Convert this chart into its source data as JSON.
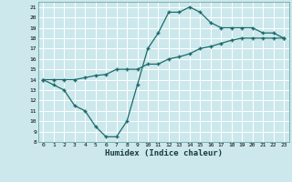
{
  "xlabel": "Humidex (Indice chaleur)",
  "bg_color": "#cce8ec",
  "grid_color": "#ffffff",
  "line_color": "#1a6b6b",
  "xlim": [
    -0.5,
    23.5
  ],
  "ylim": [
    8,
    21.5
  ],
  "xticks": [
    0,
    1,
    2,
    3,
    4,
    5,
    6,
    7,
    8,
    9,
    10,
    11,
    12,
    13,
    14,
    15,
    16,
    17,
    18,
    19,
    20,
    21,
    22,
    23
  ],
  "yticks": [
    8,
    9,
    10,
    11,
    12,
    13,
    14,
    15,
    16,
    17,
    18,
    19,
    20,
    21
  ],
  "line1_x": [
    0,
    1,
    2,
    3,
    4,
    5,
    6,
    7,
    8,
    9,
    10,
    11,
    12,
    13,
    14,
    15,
    16,
    17,
    18,
    19,
    20,
    21,
    22,
    23
  ],
  "line1_y": [
    14,
    13.5,
    13,
    11.5,
    11,
    9.5,
    8.5,
    8.5,
    10,
    13.5,
    17,
    18.5,
    20.5,
    20.5,
    21,
    20.5,
    19.5,
    19,
    19,
    19,
    19,
    18.5,
    18.5,
    18
  ],
  "line2_x": [
    0,
    1,
    2,
    3,
    4,
    5,
    6,
    7,
    8,
    9,
    10,
    11,
    12,
    13,
    14,
    15,
    16,
    17,
    18,
    19,
    20,
    21,
    22,
    23
  ],
  "line2_y": [
    14,
    14,
    14,
    14,
    14.2,
    14.4,
    14.5,
    15,
    15,
    15,
    15.5,
    15.5,
    16,
    16.2,
    16.5,
    17,
    17.2,
    17.5,
    17.8,
    18,
    18,
    18,
    18,
    18
  ]
}
